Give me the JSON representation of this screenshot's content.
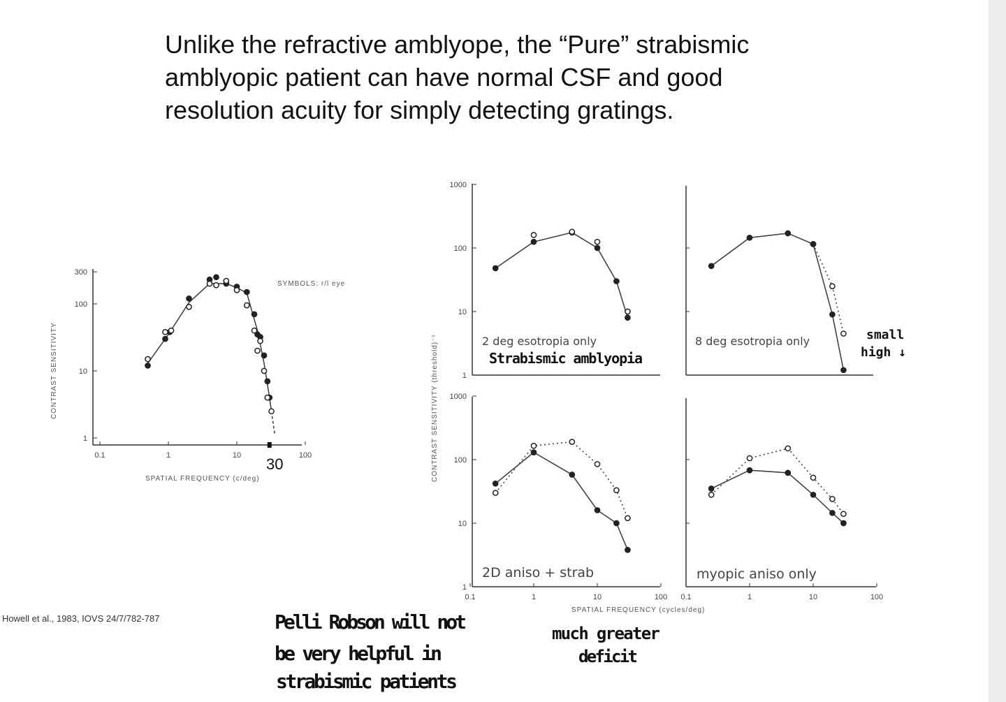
{
  "slide": {
    "title_lines": [
      "Unlike the refractive amblyope, the “Pure” strabismic",
      "amblyopic patient can have normal CSF and good",
      "resolution acuity for simply detecting gratings."
    ],
    "citation": "Howell et al., 1983, IOVS 24/7/782-787",
    "annotations": {
      "thirty": "30",
      "strabismic": "Strabismic amblyopia",
      "small_high_1": "small",
      "small_high_2": "high ↓",
      "pelli_1": "Pelli Robson will not",
      "pelli_2": "be very helpful in",
      "pelli_3": "strabismic patients",
      "deficit_1": "much greater",
      "deficit_2": "deficit"
    }
  },
  "chart_data": [
    {
      "type": "scatter",
      "id": "left",
      "xlabel": "SPATIAL FREQUENCY (c/deg)",
      "ylabel": "CONTRAST SENSITIVITY",
      "legend": "SYMBOLS: r/l eye",
      "xscale": "log",
      "yscale": "log",
      "xlim": [
        0.1,
        100
      ],
      "ylim": [
        1,
        300
      ],
      "xticks": [
        "0.1",
        "1",
        "10",
        "100"
      ],
      "yticks": [
        "1",
        "10",
        "100",
        "300"
      ],
      "series": [
        {
          "marker": "filled",
          "points": [
            [
              0.5,
              12
            ],
            [
              0.9,
              30
            ],
            [
              1.05,
              38
            ],
            [
              2,
              120
            ],
            [
              4,
              230
            ],
            [
              5,
              250
            ],
            [
              7,
              200
            ],
            [
              10,
              180
            ],
            [
              14,
              150
            ],
            [
              18,
              70
            ],
            [
              20,
              35
            ],
            [
              22,
              32
            ],
            [
              25,
              17
            ],
            [
              28,
              7
            ],
            [
              30,
              4
            ]
          ]
        },
        {
          "marker": "open",
          "points": [
            [
              0.5,
              15
            ],
            [
              0.9,
              38
            ],
            [
              1.1,
              40
            ],
            [
              2,
              90
            ],
            [
              4,
              200
            ],
            [
              5,
              190
            ],
            [
              7,
              220
            ],
            [
              10,
              160
            ],
            [
              14,
              95
            ],
            [
              18,
              40
            ],
            [
              20,
              20
            ],
            [
              22,
              28
            ],
            [
              25,
              10
            ],
            [
              28,
              4
            ],
            [
              32,
              2.5
            ]
          ]
        }
      ],
      "fit_curve": [
        [
          0.5,
          13
        ],
        [
          1,
          35
        ],
        [
          2,
          105
        ],
        [
          4,
          200
        ],
        [
          7,
          200
        ],
        [
          10,
          175
        ],
        [
          14,
          145
        ],
        [
          20,
          40
        ],
        [
          25,
          13
        ],
        [
          30,
          4
        ],
        [
          32,
          2.5
        ]
      ],
      "fit_extension_dashed": [
        [
          32,
          2.5
        ],
        [
          36,
          1.1
        ]
      ]
    },
    {
      "type": "line",
      "id": "panels",
      "xlabel": "SPATIAL FREQUENCY (cycles/deg)",
      "ylabel": "CONTRAST SENSITIVITY (threshold)⁻¹",
      "xscale": "log",
      "yscale": "log",
      "xlim": [
        0.1,
        100
      ],
      "ylim": [
        1,
        1000
      ],
      "xticks": [
        "0.1",
        "1",
        "10",
        "100"
      ],
      "yticks": [
        "1",
        "10",
        "100",
        "1000"
      ],
      "panels": [
        {
          "label": "2 deg esotropia only",
          "solid": [
            [
              0.25,
              48
            ],
            [
              1,
              125
            ],
            [
              4,
              175
            ],
            [
              10,
              100
            ],
            [
              20,
              30
            ],
            [
              30,
              8
            ]
          ],
          "dotted": [],
          "extra_points": [
            [
              1,
              160
            ],
            [
              4,
              180
            ],
            [
              10,
              125
            ],
            [
              30,
              10
            ]
          ]
        },
        {
          "label": "8 deg esotropia only",
          "solid": [
            [
              0.25,
              52
            ],
            [
              1,
              145
            ],
            [
              4,
              170
            ],
            [
              10,
              115
            ],
            [
              20,
              9
            ],
            [
              30,
              1.2
            ]
          ],
          "dotted": [
            [
              10,
              115
            ],
            [
              20,
              25
            ],
            [
              30,
              4.5
            ]
          ],
          "extra_points": []
        },
        {
          "label": "2D aniso + strab",
          "solid": [
            [
              0.25,
              42
            ],
            [
              1,
              130
            ],
            [
              4,
              58
            ],
            [
              10,
              16
            ],
            [
              20,
              10
            ],
            [
              30,
              3.8
            ]
          ],
          "dotted": [
            [
              0.25,
              30
            ],
            [
              1,
              165
            ],
            [
              4,
              190
            ],
            [
              10,
              85
            ],
            [
              20,
              33
            ],
            [
              30,
              12
            ]
          ],
          "extra_points": []
        },
        {
          "label": "myopic aniso only",
          "solid": [
            [
              0.25,
              35
            ],
            [
              1,
              68
            ],
            [
              4,
              62
            ],
            [
              10,
              28
            ],
            [
              20,
              14.5
            ],
            [
              30,
              10
            ]
          ],
          "dotted": [
            [
              0.25,
              28
            ],
            [
              1,
              105
            ],
            [
              4,
              150
            ],
            [
              10,
              52
            ],
            [
              20,
              24
            ],
            [
              30,
              14
            ]
          ],
          "extra_points": []
        }
      ]
    }
  ]
}
